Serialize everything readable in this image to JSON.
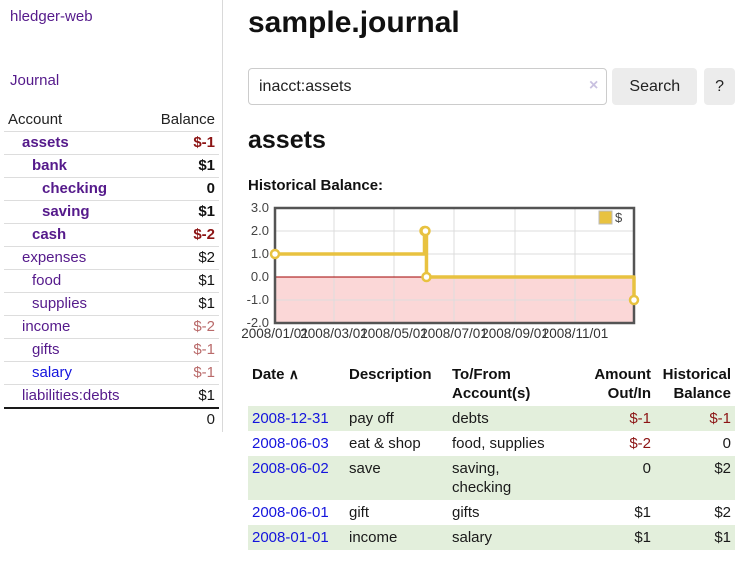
{
  "app": {
    "title": "hledger-web"
  },
  "sidebar": {
    "journal_link": "Journal",
    "accounts": {
      "headers": [
        "Account",
        "Balance"
      ],
      "rows": [
        {
          "name": "assets",
          "depth": 1,
          "bold": true,
          "balance": "$-1",
          "neg": "strong"
        },
        {
          "name": "bank",
          "depth": 2,
          "bold": true,
          "balance": "$1"
        },
        {
          "name": "checking",
          "depth": 3,
          "bold": true,
          "balance": "0"
        },
        {
          "name": "saving",
          "depth": 3,
          "bold": true,
          "balance": "$1"
        },
        {
          "name": "cash",
          "depth": 2,
          "bold": true,
          "balance": "$-2",
          "neg": "strong"
        },
        {
          "name": "expenses",
          "depth": 1,
          "bold": false,
          "balance": "$2"
        },
        {
          "name": "food",
          "depth": 2,
          "bold": false,
          "balance": "$1"
        },
        {
          "name": "supplies",
          "depth": 2,
          "bold": false,
          "balance": "$1"
        },
        {
          "name": "income",
          "depth": 1,
          "bold": false,
          "balance": "$-2",
          "neg": "soft"
        },
        {
          "name": "gifts",
          "depth": 2,
          "bold": false,
          "balance": "$-1",
          "neg": "soft"
        },
        {
          "name": "salary",
          "depth": 2,
          "bold": false,
          "balance": "$-1",
          "neg": "soft",
          "link": "blue"
        },
        {
          "name": "liabilities:debts",
          "depth": 1,
          "bold": false,
          "balance": "$1"
        }
      ],
      "total": "0"
    }
  },
  "header": {
    "title": "sample.journal",
    "search": {
      "query": "inacct:assets",
      "clear_icon": "×",
      "button_label": "Search",
      "help_label": "?"
    }
  },
  "main": {
    "account_heading": "assets",
    "chart_label": "Historical Balance:"
  },
  "chart_data": {
    "type": "line",
    "step": true,
    "title": "Historical Balance",
    "series": [
      {
        "name": "$",
        "color": "#e8c240",
        "points": [
          [
            "2008-01-01",
            1
          ],
          [
            "2008-06-01",
            2
          ],
          [
            "2008-06-02",
            2
          ],
          [
            "2008-06-03",
            0
          ],
          [
            "2008-12-31",
            -1
          ]
        ]
      }
    ],
    "xlim": [
      "2008-01-01",
      "2008-12-31"
    ],
    "ylim": [
      -2,
      3
    ],
    "x_ticks": [
      [
        "2008-01-01",
        "2008/01/01"
      ],
      [
        "2008-03-01",
        "2008/03/01"
      ],
      [
        "2008-05-01",
        "2008/05/01"
      ],
      [
        "2008-07-01",
        "2008/07/01"
      ],
      [
        "2008-09-01",
        "2008/09/01"
      ],
      [
        "2008-11-01",
        "2008/11/01"
      ]
    ],
    "y_ticks": [
      "3.0",
      "2.0",
      "1.0",
      "0.0",
      "-1.0",
      "-2.0"
    ],
    "legend": {
      "label": "$",
      "position": "top-right"
    },
    "grid": true,
    "colors": {
      "line": "#e8c240",
      "marker_fill": "#ffffff",
      "negative_region_fill": "#fbd7d7",
      "zero_line": "#a00000",
      "gridline": "#dcdcdc",
      "border": "#545454"
    }
  },
  "register": {
    "sort_icon": "∧",
    "headers": {
      "date": "Date",
      "description": "Description",
      "accounts": "To/From\nAccount(s)",
      "amount": "Amount\nOut/In",
      "balance": "Historical\nBalance"
    },
    "rows": [
      {
        "date": "2008-12-31",
        "description": "pay off",
        "accounts": "debts",
        "amount": "$-1",
        "amount_neg": true,
        "balance": "$-1",
        "balance_neg": true
      },
      {
        "date": "2008-06-03",
        "description": "eat & shop",
        "accounts": "food, supplies",
        "amount": "$-2",
        "amount_neg": true,
        "balance": "0",
        "balance_neg": false
      },
      {
        "date": "2008-06-02",
        "description": "save",
        "accounts": "saving,\nchecking",
        "amount": "0",
        "amount_neg": false,
        "balance": "$2",
        "balance_neg": false
      },
      {
        "date": "2008-06-01",
        "description": "gift",
        "accounts": "gifts",
        "amount": "$1",
        "amount_neg": false,
        "balance": "$2",
        "balance_neg": false
      },
      {
        "date": "2008-01-01",
        "description": "income",
        "accounts": "salary",
        "amount": "$1",
        "amount_neg": false,
        "balance": "$1",
        "balance_neg": false
      }
    ]
  },
  "colors": {
    "link_visited_purple": "#551a8b",
    "link_blue": "#1414dd",
    "negative_strong": "#8c1414",
    "negative_soft": "#b96a6a",
    "row_stripe_green": "#e3efdc",
    "series_gold": "#e8c240"
  }
}
